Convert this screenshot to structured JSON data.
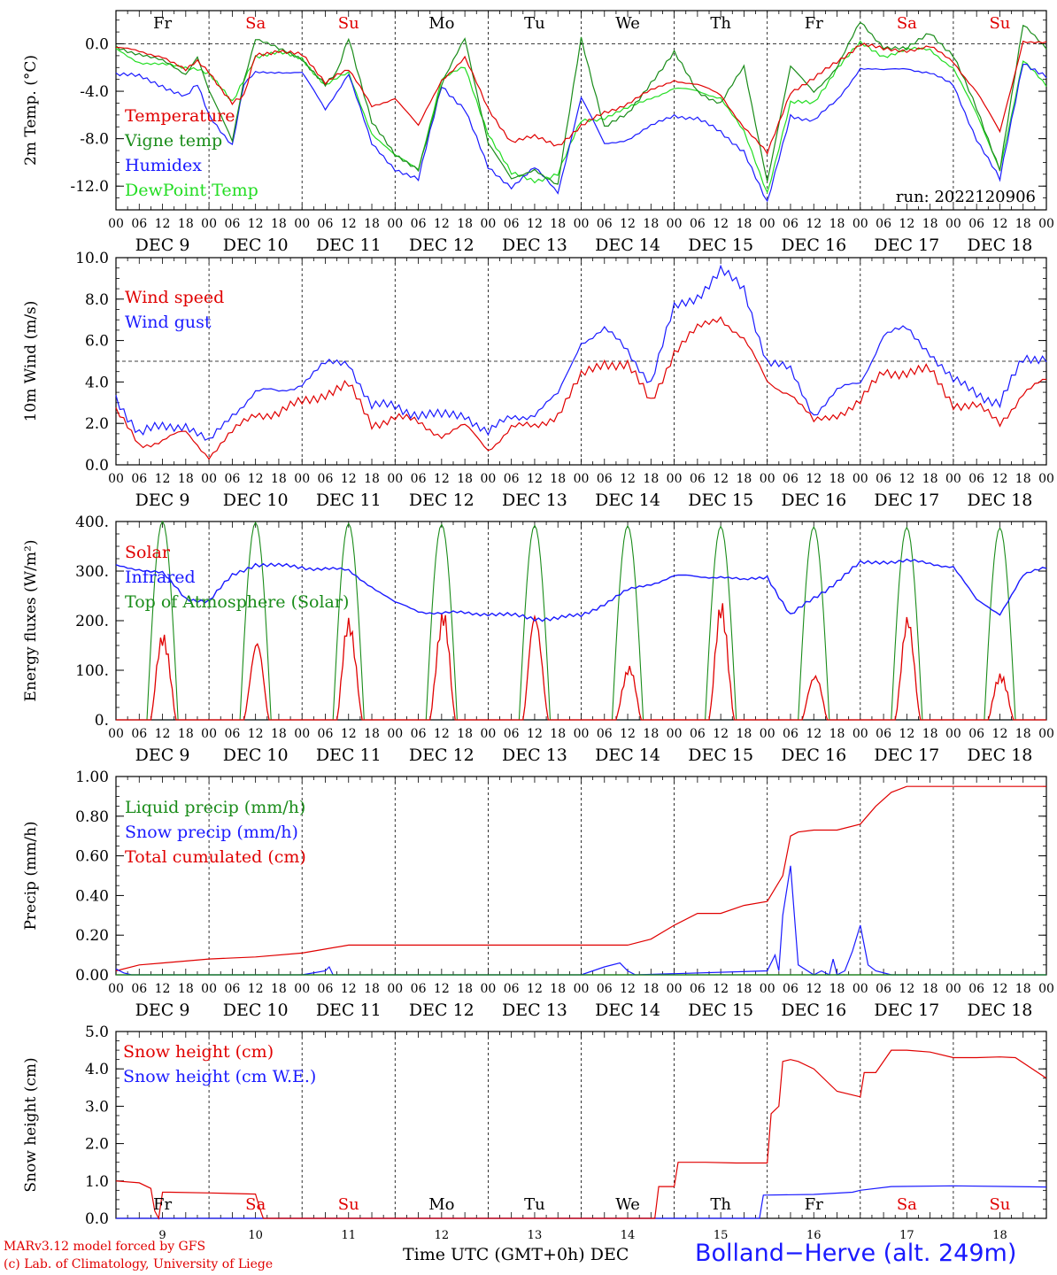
{
  "colors": {
    "red": "#e00000",
    "green": "#1a8c1a",
    "blue": "#1a1aff",
    "lightgreen": "#22dd22",
    "black": "#000000"
  },
  "time_axis": {
    "hour_labels": [
      "00",
      "06",
      "12",
      "18"
    ],
    "final_label": "00",
    "day_labels": [
      "DEC  9",
      "DEC 10",
      "DEC 11",
      "DEC 12",
      "DEC 13",
      "DEC 14",
      "DEC 15",
      "DEC 16",
      "DEC 17",
      "DEC 18"
    ],
    "weekdays": [
      "Fr",
      "Sa",
      "Su",
      "Mo",
      "Tu",
      "We",
      "Th",
      "Fr",
      "Sa",
      "Su"
    ],
    "weekend": [
      false,
      true,
      true,
      false,
      false,
      false,
      false,
      false,
      true,
      true
    ],
    "day_numbers": [
      "9",
      "10",
      "11",
      "12",
      "13",
      "14",
      "15",
      "16",
      "17",
      "18"
    ]
  },
  "footer": {
    "model": "MARv3.12 model forced by GFS",
    "lab": "(c) Lab. of Climatology, University of Liege",
    "xlabel": "Time UTC (GMT+0h) DEC",
    "station": "Bolland−Herve (alt. 249m)"
  },
  "chart_data": [
    {
      "type": "line",
      "title": "",
      "ylabel": "2m Temp. (°C)",
      "ylim": [
        -14,
        2.8
      ],
      "yticks": [
        0,
        -4,
        -8,
        -12
      ],
      "ytick_labels": [
        "0.0",
        "-4.0",
        "-8.0",
        "-12.0"
      ],
      "refline": 0,
      "run_label": "run: 2022120906",
      "x_unit": "hours since DEC 9 00 UTC",
      "series": [
        {
          "name": "Temperature",
          "color": "red",
          "x": [
            0,
            6,
            12,
            18,
            21,
            24,
            30,
            33,
            36,
            42,
            48,
            54,
            57,
            60,
            66,
            72,
            78,
            84,
            90,
            96,
            102,
            108,
            114,
            120,
            126,
            132,
            138,
            144,
            150,
            156,
            162,
            168,
            174,
            180,
            186,
            192,
            198,
            204,
            210,
            216,
            222,
            228,
            234,
            240
          ],
          "y": [
            -0.3,
            -0.7,
            -1.0,
            -2.3,
            -1.5,
            -2.3,
            -5.0,
            -4.5,
            -1.0,
            -0.5,
            -1.0,
            -3.2,
            -2.5,
            -2.2,
            -5.3,
            -4.5,
            -7.0,
            -3.0,
            -1.2,
            -5.5,
            -8.2,
            -7.9,
            -8.5,
            -7.0,
            -5.8,
            -5.0,
            -4.0,
            -3.0,
            -3.5,
            -4.3,
            -7.0,
            -9.3,
            -4.0,
            -3.0,
            -1.5,
            0.0,
            -0.5,
            -0.5,
            -0.3,
            -1.5,
            -4.0,
            -7.5,
            0.3,
            0.0
          ]
        },
        {
          "name": "Vigne temp",
          "color": "green",
          "x": [
            0,
            6,
            12,
            18,
            21,
            24,
            30,
            33,
            36,
            42,
            48,
            54,
            57,
            60,
            66,
            72,
            78,
            84,
            90,
            96,
            102,
            108,
            114,
            120,
            126,
            132,
            138,
            144,
            150,
            156,
            162,
            168,
            174,
            180,
            186,
            192,
            198,
            204,
            210,
            216,
            222,
            228,
            234,
            240
          ],
          "y": [
            -0.3,
            -0.8,
            -1.5,
            -2.5,
            -1.0,
            -4.0,
            -8.2,
            -3.0,
            0.5,
            -0.5,
            -1.2,
            -3.5,
            -2.5,
            0.5,
            -6.5,
            -9.5,
            -10.5,
            -3.5,
            0.5,
            -8.3,
            -11.5,
            -10.5,
            -12.0,
            0.5,
            -7.0,
            -6.0,
            -3.2,
            -0.8,
            -4.0,
            -5.0,
            -2.0,
            -11.5,
            -2.0,
            -4.0,
            -2.0,
            1.8,
            -0.2,
            -0.5,
            1.0,
            -1.0,
            -5.5,
            -10.5,
            1.5,
            -0.3
          ]
        },
        {
          "name": "Humidex",
          "color": "blue",
          "x": [
            0,
            6,
            12,
            18,
            21,
            24,
            30,
            33,
            36,
            42,
            48,
            54,
            57,
            60,
            66,
            72,
            78,
            84,
            90,
            96,
            102,
            108,
            114,
            120,
            126,
            132,
            138,
            144,
            150,
            156,
            162,
            168,
            174,
            180,
            186,
            192,
            198,
            204,
            210,
            216,
            222,
            228,
            234,
            240
          ],
          "y": [
            -2.5,
            -2.8,
            -3.5,
            -4.5,
            -3.5,
            -6.0,
            -8.5,
            -3.5,
            -2.5,
            -2.3,
            -2.5,
            -5.5,
            -4.0,
            -2.5,
            -8.5,
            -10.5,
            -11.5,
            -3.5,
            -5.5,
            -10.5,
            -12.0,
            -10.5,
            -12.5,
            -4.5,
            -8.5,
            -8.0,
            -7.0,
            -6.0,
            -6.3,
            -7.5,
            -9.0,
            -13.5,
            -6.0,
            -6.5,
            -4.8,
            -2.0,
            -2.3,
            -2.0,
            -2.5,
            -3.5,
            -8.0,
            -11.5,
            -1.5,
            -2.8
          ]
        },
        {
          "name": "DewPoint Temp",
          "color": "lightgreen",
          "x": [
            0,
            6,
            12,
            18,
            21,
            24,
            30,
            33,
            36,
            42,
            48,
            54,
            57,
            60,
            66,
            72,
            78,
            84,
            90,
            96,
            102,
            108,
            114,
            120,
            126,
            132,
            138,
            144,
            150,
            156,
            162,
            168,
            174,
            180,
            186,
            192,
            198,
            204,
            210,
            216,
            222,
            228,
            234,
            240
          ],
          "y": [
            -0.5,
            -1.5,
            -1.8,
            -2.0,
            -2.0,
            -2.5,
            -5.0,
            -3.0,
            -1.0,
            -0.8,
            -1.2,
            -3.5,
            -3.0,
            -2.5,
            -7.5,
            -9.5,
            -10.5,
            -3.0,
            -2.0,
            -7.5,
            -11.0,
            -11.5,
            -11.0,
            -6.5,
            -6.2,
            -5.5,
            -4.5,
            -3.8,
            -4.0,
            -4.5,
            -7.5,
            -12.5,
            -5.0,
            -5.0,
            -2.0,
            0.0,
            -1.0,
            -0.5,
            -0.5,
            -2.0,
            -6.0,
            -10.5,
            -1.5,
            -3.5
          ]
        }
      ]
    },
    {
      "type": "line",
      "title": "",
      "ylabel": "10m Wind (m/s)",
      "ylim": [
        0,
        10
      ],
      "yticks": [
        0,
        2,
        4,
        6,
        8,
        10
      ],
      "ytick_labels": [
        "0.0",
        "2.0",
        "4.0",
        "6.0",
        "8.0",
        "10.0"
      ],
      "refline": 5,
      "x_unit": "hours since DEC 9 00 UTC",
      "series": [
        {
          "name": "Wind speed",
          "color": "red",
          "x": [
            0,
            6,
            12,
            18,
            24,
            30,
            36,
            42,
            48,
            54,
            60,
            66,
            72,
            78,
            84,
            90,
            96,
            102,
            108,
            114,
            120,
            126,
            132,
            138,
            144,
            150,
            156,
            162,
            168,
            174,
            180,
            186,
            192,
            198,
            204,
            210,
            216,
            222,
            228,
            234,
            240
          ],
          "y": [
            2.5,
            1.0,
            1.2,
            1.5,
            0.5,
            1.5,
            2.5,
            2.5,
            3.0,
            3.5,
            3.8,
            2.0,
            2.3,
            2.0,
            1.5,
            1.8,
            0.8,
            1.8,
            1.8,
            2.5,
            4.2,
            5.0,
            4.8,
            3.0,
            5.5,
            6.5,
            7.2,
            6.0,
            4.0,
            3.5,
            2.0,
            2.5,
            3.0,
            4.5,
            4.5,
            4.5,
            3.0,
            2.8,
            2.0,
            3.5,
            4.0
          ]
        },
        {
          "name": "Wind gust",
          "color": "blue",
          "x": [
            0,
            6,
            12,
            18,
            24,
            30,
            36,
            42,
            48,
            54,
            60,
            66,
            72,
            78,
            84,
            90,
            96,
            102,
            108,
            114,
            120,
            126,
            132,
            138,
            144,
            150,
            156,
            162,
            168,
            174,
            180,
            186,
            192,
            198,
            204,
            210,
            216,
            222,
            228,
            234,
            240
          ],
          "y": [
            3.3,
            1.5,
            1.8,
            2.0,
            1.0,
            2.5,
            3.5,
            3.5,
            4.0,
            4.8,
            5.0,
            2.8,
            2.8,
            2.5,
            2.3,
            2.5,
            1.5,
            2.3,
            2.5,
            3.3,
            6.0,
            6.5,
            5.5,
            4.0,
            7.5,
            8.2,
            9.3,
            8.5,
            5.0,
            4.5,
            2.5,
            3.5,
            4.0,
            6.3,
            6.5,
            5.5,
            4.0,
            3.5,
            3.0,
            5.0,
            5.3
          ]
        }
      ]
    },
    {
      "type": "line",
      "title": "",
      "ylabel": "Energy fluxes (W/m²)",
      "ylim": [
        0,
        400
      ],
      "yticks": [
        0,
        100,
        200,
        300,
        400
      ],
      "ytick_labels": [
        "0.",
        "100.",
        "200.",
        "300.",
        "400."
      ],
      "x_unit": "hours since DEC 9 00 UTC",
      "series": [
        {
          "name": "Solar",
          "color": "red",
          "peaks": [
            205,
            170,
            230,
            240,
            235,
            125,
            245,
            110,
            215,
            110
          ]
        },
        {
          "name": "Infrared",
          "color": "blue",
          "x": [
            0,
            6,
            12,
            18,
            24,
            30,
            36,
            42,
            48,
            54,
            60,
            66,
            72,
            78,
            84,
            90,
            96,
            102,
            108,
            114,
            120,
            126,
            132,
            138,
            144,
            150,
            156,
            162,
            168,
            174,
            180,
            186,
            192,
            198,
            204,
            210,
            216,
            222,
            228,
            234,
            240
          ],
          "y": [
            310,
            305,
            295,
            245,
            240,
            290,
            315,
            310,
            308,
            305,
            300,
            270,
            235,
            220,
            215,
            215,
            215,
            210,
            205,
            205,
            210,
            235,
            260,
            275,
            290,
            288,
            290,
            280,
            290,
            210,
            245,
            280,
            315,
            320,
            320,
            315,
            310,
            240,
            215,
            290,
            308
          ]
        },
        {
          "name": "Top of Atmosphere (Solar)",
          "color": "green",
          "peaks": [
            400,
            398,
            396,
            394,
            392,
            391,
            390,
            389,
            388,
            387
          ]
        }
      ],
      "tod_hours": [
        8,
        16
      ]
    },
    {
      "type": "line",
      "title": "",
      "ylabel": "Precip (mm/h)",
      "ylim": [
        0,
        1.0
      ],
      "yticks": [
        0,
        0.2,
        0.4,
        0.6,
        0.8,
        1.0
      ],
      "ytick_labels": [
        "0.00",
        "0.20",
        "0.40",
        "0.60",
        "0.80",
        "1.00"
      ],
      "x_unit": "hours since DEC 9 00 UTC",
      "series": [
        {
          "name": "Liquid precip (mm/h)",
          "color": "green",
          "x": [
            0,
            240
          ],
          "y": [
            0,
            0
          ]
        },
        {
          "name": "Snow precip (mm/h)",
          "color": "blue",
          "x": [
            0,
            2,
            4,
            24,
            48,
            54,
            55,
            56,
            120,
            126,
            130,
            132,
            134,
            168,
            170,
            171,
            172,
            174,
            176,
            180,
            182,
            184,
            185,
            186,
            188,
            190,
            192,
            194,
            196,
            200,
            240
          ],
          "y": [
            0.03,
            0.01,
            0.0,
            0.0,
            0.0,
            0.02,
            0.04,
            0.0,
            0.0,
            0.04,
            0.06,
            0.02,
            0.0,
            0.02,
            0.1,
            0.02,
            0.3,
            0.55,
            0.05,
            0.0,
            0.02,
            0.0,
            0.08,
            0.0,
            0.02,
            0.12,
            0.25,
            0.05,
            0.02,
            0.0,
            0.0
          ]
        },
        {
          "name": "Total cumulated (cm)",
          "color": "red",
          "x": [
            0,
            6,
            12,
            24,
            36,
            48,
            54,
            60,
            72,
            84,
            96,
            108,
            120,
            126,
            132,
            138,
            144,
            150,
            156,
            162,
            168,
            172,
            174,
            176,
            180,
            186,
            192,
            196,
            200,
            204,
            216,
            240
          ],
          "y": [
            0.02,
            0.05,
            0.06,
            0.08,
            0.09,
            0.11,
            0.13,
            0.15,
            0.15,
            0.15,
            0.15,
            0.15,
            0.15,
            0.15,
            0.15,
            0.18,
            0.25,
            0.31,
            0.31,
            0.35,
            0.37,
            0.5,
            0.7,
            0.72,
            0.73,
            0.73,
            0.76,
            0.85,
            0.92,
            0.95,
            0.95,
            0.95
          ]
        }
      ]
    },
    {
      "type": "line",
      "title": "",
      "ylabel": "Snow height (cm)",
      "ylim": [
        0,
        5.0
      ],
      "yticks": [
        0,
        1,
        2,
        3,
        4,
        5
      ],
      "ytick_labels": [
        "0.0",
        "1.0",
        "2.0",
        "3.0",
        "4.0",
        "5.0"
      ],
      "x_unit": "hours since DEC 9 00 UTC",
      "series": [
        {
          "name": "Snow height (cm)",
          "color": "red",
          "x": [
            0,
            6,
            9,
            10,
            11,
            12,
            14,
            24,
            36,
            37,
            38,
            48,
            96,
            120,
            139,
            140,
            144,
            145,
            150,
            152,
            160,
            168,
            169,
            171,
            172,
            174,
            176,
            180,
            186,
            190,
            192,
            193,
            196,
            200,
            204,
            210,
            216,
            222,
            228,
            232,
            240
          ],
          "y": [
            1.0,
            0.95,
            0.8,
            0.2,
            0.0,
            0.7,
            0.7,
            0.68,
            0.65,
            0.3,
            0.0,
            0.0,
            0.0,
            0.0,
            0.0,
            0.85,
            0.85,
            1.5,
            1.5,
            1.5,
            1.48,
            1.48,
            2.8,
            3.0,
            4.2,
            4.25,
            4.2,
            4.0,
            3.4,
            3.3,
            3.25,
            3.9,
            3.9,
            4.5,
            4.5,
            4.45,
            4.3,
            4.3,
            4.32,
            4.3,
            3.75
          ]
        },
        {
          "name": "Snow height (cm W.E.)",
          "color": "blue",
          "x": [
            0,
            166,
            167,
            180,
            190,
            192,
            200,
            216,
            240
          ],
          "y": [
            0.0,
            0.0,
            0.62,
            0.64,
            0.7,
            0.75,
            0.85,
            0.87,
            0.84
          ]
        }
      ]
    }
  ]
}
